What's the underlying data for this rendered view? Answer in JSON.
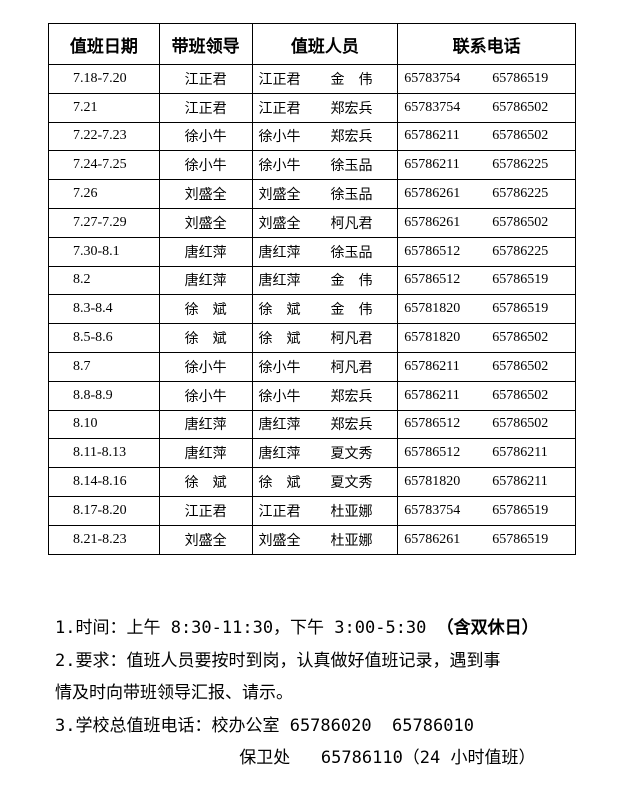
{
  "table": {
    "headers": [
      "值班日期",
      "带班领导",
      "值班人员",
      "联系电话"
    ],
    "rows": [
      {
        "date": "7.18-7.20",
        "leader": "江正君",
        "staff": [
          "江正君",
          "金　伟"
        ],
        "phones": [
          "65783754",
          "65786519"
        ]
      },
      {
        "date": "7.21",
        "leader": "江正君",
        "staff": [
          "江正君",
          "郑宏兵"
        ],
        "phones": [
          "65783754",
          "65786502"
        ]
      },
      {
        "date": "7.22-7.23",
        "leader": "徐小牛",
        "staff": [
          "徐小牛",
          "郑宏兵"
        ],
        "phones": [
          "65786211",
          "65786502"
        ]
      },
      {
        "date": "7.24-7.25",
        "leader": "徐小牛",
        "staff": [
          "徐小牛",
          "徐玉品"
        ],
        "phones": [
          "65786211",
          "65786225"
        ]
      },
      {
        "date": "7.26",
        "leader": "刘盛全",
        "staff": [
          "刘盛全",
          "徐玉品"
        ],
        "phones": [
          "65786261",
          "65786225"
        ]
      },
      {
        "date": "7.27-7.29",
        "leader": "刘盛全",
        "staff": [
          "刘盛全",
          "柯凡君"
        ],
        "phones": [
          "65786261",
          "65786502"
        ]
      },
      {
        "date": "7.30-8.1",
        "leader": "唐红萍",
        "staff": [
          "唐红萍",
          "徐玉品"
        ],
        "phones": [
          "65786512",
          "65786225"
        ]
      },
      {
        "date": "8.2",
        "leader": "唐红萍",
        "staff": [
          "唐红萍",
          "金　伟"
        ],
        "phones": [
          "65786512",
          "65786519"
        ]
      },
      {
        "date": "8.3-8.4",
        "leader": "徐　斌",
        "staff": [
          "徐　斌",
          "金　伟"
        ],
        "phones": [
          "65781820",
          "65786519"
        ]
      },
      {
        "date": "8.5-8.6",
        "leader": "徐　斌",
        "staff": [
          "徐　斌",
          "柯凡君"
        ],
        "phones": [
          "65781820",
          "65786502"
        ]
      },
      {
        "date": "8.7",
        "leader": "徐小牛",
        "staff": [
          "徐小牛",
          "柯凡君"
        ],
        "phones": [
          "65786211",
          "65786502"
        ]
      },
      {
        "date": "8.8-8.9",
        "leader": "徐小牛",
        "staff": [
          "徐小牛",
          "郑宏兵"
        ],
        "phones": [
          "65786211",
          "65786502"
        ]
      },
      {
        "date": "8.10",
        "leader": "唐红萍",
        "staff": [
          "唐红萍",
          "郑宏兵"
        ],
        "phones": [
          "65786512",
          "65786502"
        ]
      },
      {
        "date": "8.11-8.13",
        "leader": "唐红萍",
        "staff": [
          "唐红萍",
          "夏文秀"
        ],
        "phones": [
          "65786512",
          "65786211"
        ]
      },
      {
        "date": "8.14-8.16",
        "leader": "徐　斌",
        "staff": [
          "徐　斌",
          "夏文秀"
        ],
        "phones": [
          "65781820",
          "65786211"
        ]
      },
      {
        "date": "8.17-8.20",
        "leader": "江正君",
        "staff": [
          "江正君",
          "杜亚娜"
        ],
        "phones": [
          "65783754",
          "65786519"
        ]
      },
      {
        "date": "8.21-8.23",
        "leader": "刘盛全",
        "staff": [
          "刘盛全",
          "杜亚娜"
        ],
        "phones": [
          "65786261",
          "65786519"
        ]
      }
    ]
  },
  "notes": {
    "line1": "1.时间：上午 8:30-11:30，下午 3:00-5:30 ",
    "line1_bold": "（含双休日）",
    "line2": "2.要求：值班人员要按时到岗，认真做好值班记录，遇到事",
    "line3": "情及时向带班领导汇报、请示。",
    "line4": "3.学校总值班电话：校办公室 65786020  65786010",
    "line5": "                  保卫处   65786110（24 小时值班）"
  }
}
